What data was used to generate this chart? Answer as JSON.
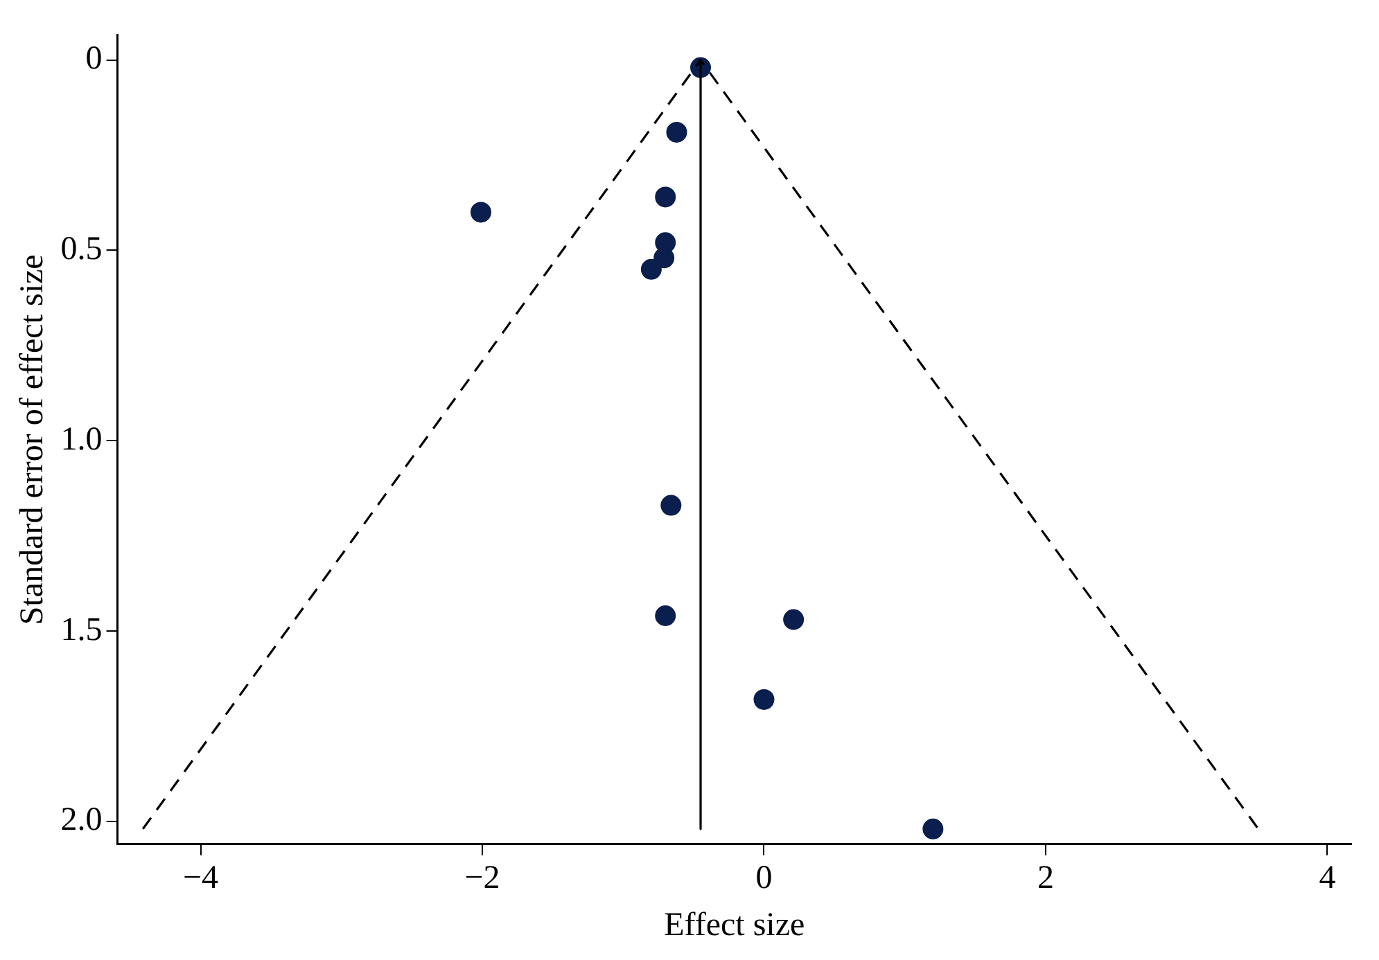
{
  "chart_data": {
    "type": "scatter",
    "xlabel": "Effect size",
    "ylabel": "Standard error of effect size",
    "xlim": [
      -4.59,
      4.17
    ],
    "xticks": [
      {
        "value": -4,
        "label": "−4"
      },
      {
        "value": -2,
        "label": "−2"
      },
      0,
      2,
      4
    ],
    "ylim": [
      2.06,
      -0.065
    ],
    "yticks": [
      0,
      0.5,
      {
        "value": 1,
        "label": "1.0"
      },
      1.5,
      {
        "value": 2,
        "label": "2.0"
      }
    ],
    "grid": false,
    "legend": false,
    "series": [
      {
        "type": "line",
        "line_style": "dashed",
        "marker": "none",
        "color": "#000000",
        "x": [
          -4.41,
          -0.45,
          3.51
        ],
        "values": [
          2.02,
          0,
          2.02
        ]
      },
      {
        "type": "line",
        "line_style": "solid",
        "marker": "none",
        "color": "#000000",
        "x": [
          -0.45,
          -0.45
        ],
        "values": [
          0,
          2.02
        ]
      },
      {
        "type": "scatter",
        "marker": "circle",
        "color": "#0a1f4d",
        "x": [
          -0.45,
          -0.62,
          -0.7,
          -2.01,
          -0.7,
          -0.71,
          -0.8,
          -0.66,
          -0.7,
          0.21,
          0.0,
          1.2
        ],
        "values": [
          0.02,
          0.19,
          0.36,
          0.4,
          0.48,
          0.52,
          0.55,
          1.17,
          1.46,
          1.47,
          1.68,
          2.02
        ]
      }
    ]
  }
}
